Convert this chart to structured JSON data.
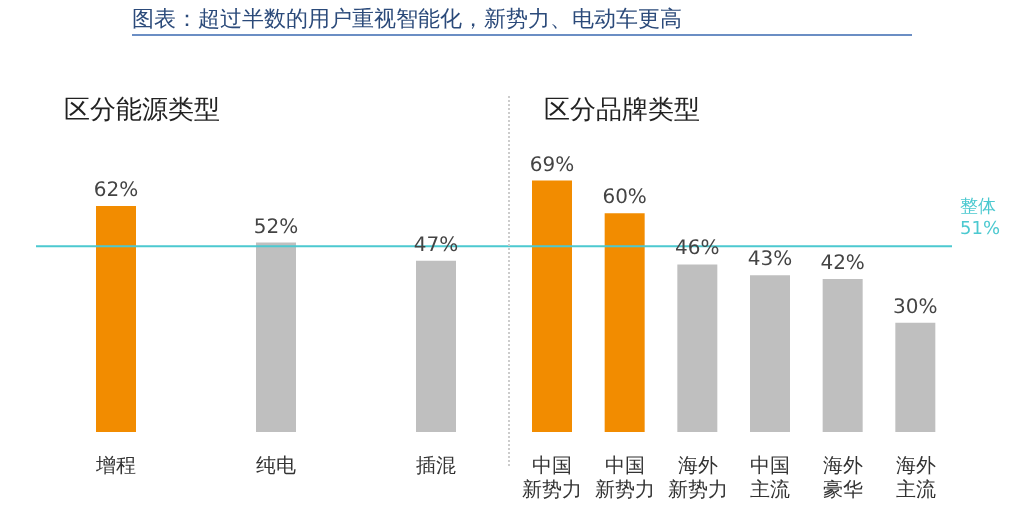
{
  "chart_data": [
    {
      "type": "bar",
      "title": "区分能源类型",
      "annotations": [
        "图表：超过半数的用户重视智能化，新势力、电动车更高"
      ],
      "categories": [
        "增程",
        "纯电",
        "插混"
      ],
      "values": [
        62,
        52,
        47
      ],
      "value_labels": [
        "62%",
        "52%",
        "47%"
      ],
      "colors": [
        "#f28c00",
        "#bfbfbf",
        "#bfbfbf"
      ],
      "ref_lines": [
        {
          "axis": "y",
          "value": 51,
          "color": "#4cc9d0"
        }
      ]
    },
    {
      "type": "bar",
      "title": "区分品牌类型",
      "categories": [
        "中国新势力",
        "中国新势力",
        "海外新势力",
        "中国主流",
        "海外豪华",
        "海外主流"
      ],
      "values": [
        69,
        60,
        46,
        43,
        42,
        30
      ],
      "value_labels": [
        "69%",
        "60%",
        "46%",
        "43%",
        "42%",
        "30%"
      ],
      "colors": [
        "#f28c00",
        "#f28c00",
        "#bfbfbf",
        "#bfbfbf",
        "#bfbfbf",
        "#bfbfbf"
      ],
      "ref_lines": [
        {
          "axis": "y",
          "value": 51,
          "label": "整体51%",
          "color": "#4cc9d0"
        }
      ]
    }
  ]
}
